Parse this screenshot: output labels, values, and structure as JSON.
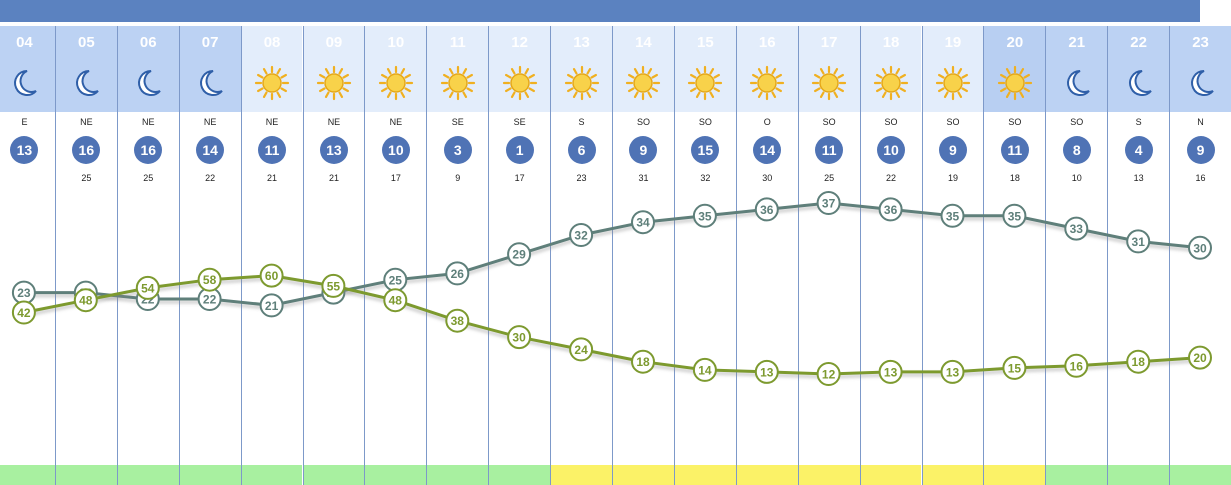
{
  "colors": {
    "header_night": "#bcd2f3",
    "header_day": "#e3edfb",
    "header_highlight": "#b8cff2",
    "wind_circle": "#4f73b5",
    "temperature_line": "#5e7f7a",
    "humidity_line": "#7d9a2f",
    "footer_green": "#a8f0a0",
    "footer_yellow": "#fbf267"
  },
  "hours": [
    {
      "label": "04",
      "icon": "moon-icon",
      "wind_dir": "E",
      "wind": "13",
      "gust": "",
      "footer": "green",
      "highlight": false
    },
    {
      "label": "05",
      "icon": "moon-icon",
      "wind_dir": "NE",
      "wind": "16",
      "gust": "25",
      "footer": "green",
      "highlight": false
    },
    {
      "label": "06",
      "icon": "moon-icon",
      "wind_dir": "NE",
      "wind": "16",
      "gust": "25",
      "footer": "green",
      "highlight": false
    },
    {
      "label": "07",
      "icon": "moon-icon",
      "wind_dir": "NE",
      "wind": "14",
      "gust": "22",
      "footer": "green",
      "highlight": false
    },
    {
      "label": "08",
      "icon": "sun-icon",
      "wind_dir": "NE",
      "wind": "11",
      "gust": "21",
      "footer": "green",
      "highlight": false
    },
    {
      "label": "09",
      "icon": "sun-icon",
      "wind_dir": "NE",
      "wind": "13",
      "gust": "21",
      "footer": "green",
      "highlight": false
    },
    {
      "label": "10",
      "icon": "sun-icon",
      "wind_dir": "NE",
      "wind": "10",
      "gust": "17",
      "footer": "green",
      "highlight": false
    },
    {
      "label": "11",
      "icon": "sun-icon",
      "wind_dir": "SE",
      "wind": "3",
      "gust": "9",
      "footer": "green",
      "highlight": false
    },
    {
      "label": "12",
      "icon": "sun-icon",
      "wind_dir": "SE",
      "wind": "1",
      "gust": "17",
      "footer": "green",
      "highlight": false
    },
    {
      "label": "13",
      "icon": "sun-icon",
      "wind_dir": "S",
      "wind": "6",
      "gust": "23",
      "footer": "yellow",
      "highlight": false
    },
    {
      "label": "14",
      "icon": "sun-icon",
      "wind_dir": "SO",
      "wind": "9",
      "gust": "31",
      "footer": "yellow",
      "highlight": false
    },
    {
      "label": "15",
      "icon": "sun-icon",
      "wind_dir": "SO",
      "wind": "15",
      "gust": "32",
      "footer": "yellow",
      "highlight": false
    },
    {
      "label": "16",
      "icon": "sun-icon",
      "wind_dir": "O",
      "wind": "14",
      "gust": "30",
      "footer": "yellow",
      "highlight": false
    },
    {
      "label": "17",
      "icon": "sun-icon",
      "wind_dir": "SO",
      "wind": "11",
      "gust": "25",
      "footer": "yellow",
      "highlight": false
    },
    {
      "label": "18",
      "icon": "sun-icon",
      "wind_dir": "SO",
      "wind": "10",
      "gust": "22",
      "footer": "yellow",
      "highlight": false
    },
    {
      "label": "19",
      "icon": "sun-icon",
      "wind_dir": "SO",
      "wind": "9",
      "gust": "19",
      "footer": "yellow",
      "highlight": false
    },
    {
      "label": "20",
      "icon": "sun-icon",
      "wind_dir": "SO",
      "wind": "11",
      "gust": "18",
      "footer": "yellow",
      "highlight": true
    },
    {
      "label": "21",
      "icon": "moon-icon",
      "wind_dir": "SO",
      "wind": "8",
      "gust": "10",
      "footer": "green",
      "highlight": false
    },
    {
      "label": "22",
      "icon": "moon-icon",
      "wind_dir": "S",
      "wind": "4",
      "gust": "13",
      "footer": "green",
      "highlight": false
    },
    {
      "label": "23",
      "icon": "moon-icon",
      "wind_dir": "N",
      "wind": "9",
      "gust": "16",
      "footer": "green",
      "highlight": false
    }
  ],
  "chart_data": {
    "type": "line",
    "x": [
      "04",
      "05",
      "06",
      "07",
      "08",
      "09",
      "10",
      "11",
      "12",
      "13",
      "14",
      "15",
      "16",
      "17",
      "18",
      "19",
      "20",
      "21",
      "22",
      "23"
    ],
    "series": [
      {
        "values": [
          23,
          23,
          22,
          22,
          21,
          23,
          25,
          26,
          29,
          32,
          34,
          35,
          36,
          37,
          36,
          35,
          35,
          33,
          31,
          30
        ]
      },
      {
        "values": [
          42,
          48,
          54,
          58,
          60,
          55,
          48,
          38,
          30,
          24,
          18,
          14,
          13,
          12,
          13,
          13,
          15,
          16,
          18,
          20
        ]
      }
    ]
  }
}
